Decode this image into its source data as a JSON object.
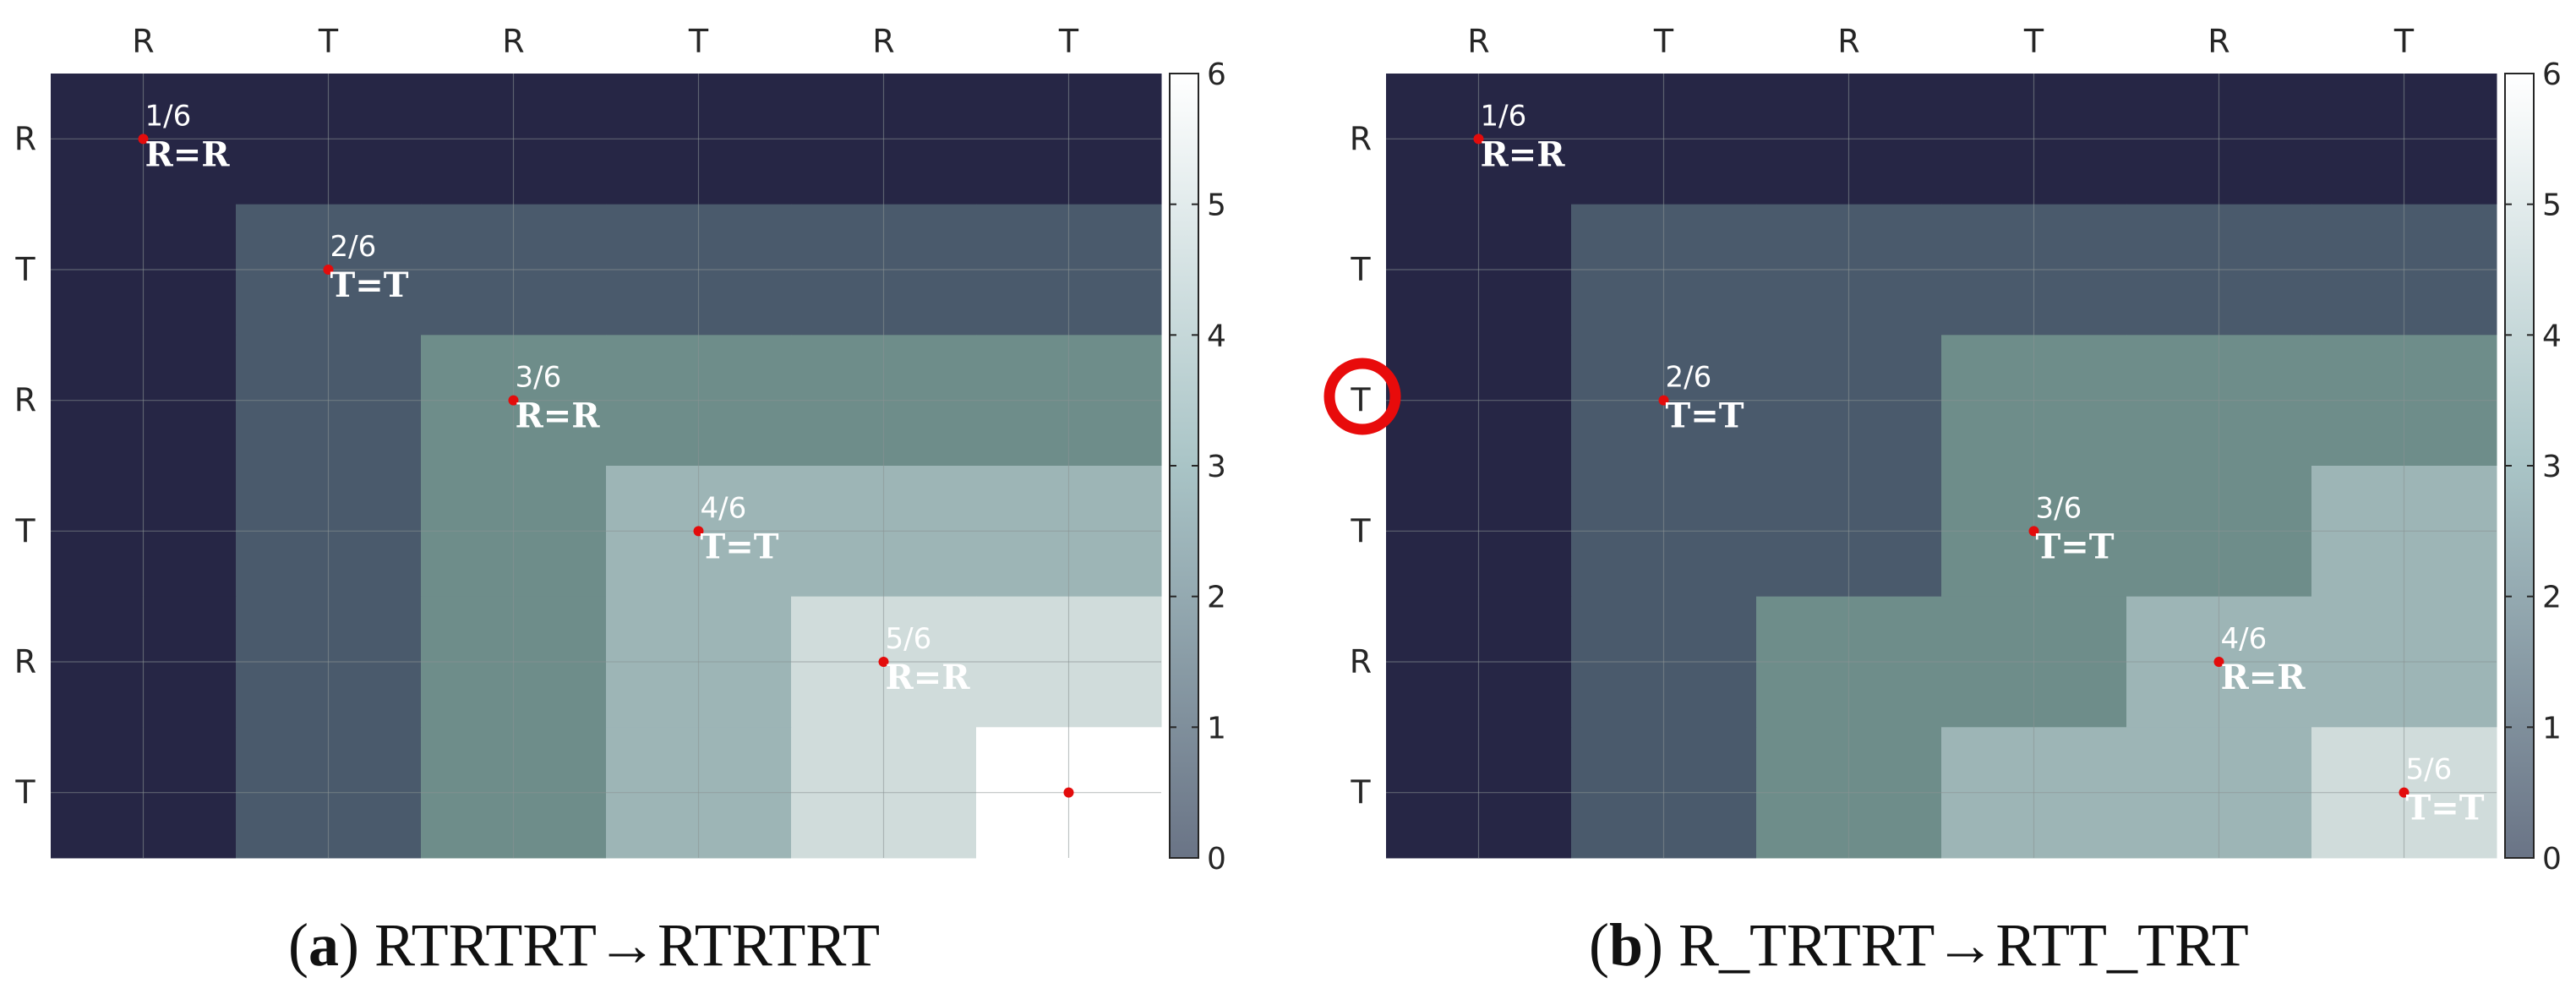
{
  "chart_data": [
    {
      "type": "heatmap",
      "panel_label": "a",
      "caption": "RTRTRT→RTRTRT",
      "x_tick_labels": [
        "R",
        "T",
        "R",
        "T",
        "R",
        "T"
      ],
      "y_tick_labels": [
        "R",
        "T",
        "R",
        "T",
        "R",
        "T"
      ],
      "matrix": [
        [
          0,
          0,
          0,
          0,
          0,
          0
        ],
        [
          0,
          1,
          1,
          1,
          1,
          1
        ],
        [
          0,
          1,
          2,
          2,
          2,
          2
        ],
        [
          0,
          1,
          2,
          3,
          3,
          3
        ],
        [
          0,
          1,
          2,
          3,
          4,
          4
        ],
        [
          0,
          1,
          2,
          3,
          4,
          5
        ]
      ],
      "path": [
        [
          0,
          0
        ],
        [
          1,
          1
        ],
        [
          2,
          2
        ],
        [
          3,
          3
        ],
        [
          4,
          4
        ],
        [
          5,
          5
        ]
      ],
      "annotations": [
        {
          "row": 0,
          "col": 0,
          "fraction": "1/6",
          "equation": "R=R"
        },
        {
          "row": 1,
          "col": 1,
          "fraction": "2/6",
          "equation": "T=T"
        },
        {
          "row": 2,
          "col": 2,
          "fraction": "3/6",
          "equation": "R=R"
        },
        {
          "row": 3,
          "col": 3,
          "fraction": "4/6",
          "equation": "T=T"
        },
        {
          "row": 4,
          "col": 4,
          "fraction": "5/6",
          "equation": "R=R"
        }
      ],
      "colorbar": {
        "min": 0,
        "max": 6,
        "ticks": [
          0,
          1,
          2,
          3,
          4,
          5,
          6
        ]
      },
      "highlight_y_tick": null
    },
    {
      "type": "heatmap",
      "panel_label": "b",
      "caption": "R_TRTRT→RTT_TRT",
      "x_tick_labels": [
        "R",
        "T",
        "R",
        "T",
        "R",
        "T"
      ],
      "y_tick_labels": [
        "R",
        "T",
        "T",
        "T",
        "R",
        "T"
      ],
      "matrix": [
        [
          0,
          0,
          0,
          0,
          0,
          0
        ],
        [
          0,
          1,
          1,
          1,
          1,
          1
        ],
        [
          0,
          1,
          1,
          2,
          2,
          2
        ],
        [
          0,
          1,
          1,
          2,
          2,
          3
        ],
        [
          0,
          1,
          2,
          2,
          3,
          3
        ],
        [
          0,
          1,
          2,
          3,
          3,
          4
        ]
      ],
      "path": [
        [
          0,
          0
        ],
        [
          2,
          1
        ],
        [
          3,
          3
        ],
        [
          4,
          4
        ],
        [
          5,
          5
        ]
      ],
      "annotations": [
        {
          "row": 0,
          "col": 0,
          "fraction": "1/6",
          "equation": "R=R"
        },
        {
          "row": 2,
          "col": 1,
          "fraction": "2/6",
          "equation": "T=T"
        },
        {
          "row": 3,
          "col": 3,
          "fraction": "3/6",
          "equation": "T=T"
        },
        {
          "row": 4,
          "col": 4,
          "fraction": "4/6",
          "equation": "R=R"
        },
        {
          "row": 5,
          "col": 5,
          "fraction": "5/6",
          "equation": "T=T"
        }
      ],
      "colorbar": {
        "min": 0,
        "max": 6,
        "ticks": [
          0,
          1,
          2,
          3,
          4,
          5,
          6
        ]
      },
      "highlight_y_tick": 2
    }
  ],
  "colors": {
    "palette": [
      "#262645",
      "#4a5a6c",
      "#6e8d8a",
      "#9db5b6",
      "#d0dcdb",
      "#ffffff"
    ],
    "colorbar_bottom": "#6a7486",
    "colorbar_mid": "#a9c4c6",
    "colorbar_top": "#ffffff",
    "path_marker": "#e30c0c",
    "highlight": "#e80b0b",
    "grid": "#8a9494"
  }
}
